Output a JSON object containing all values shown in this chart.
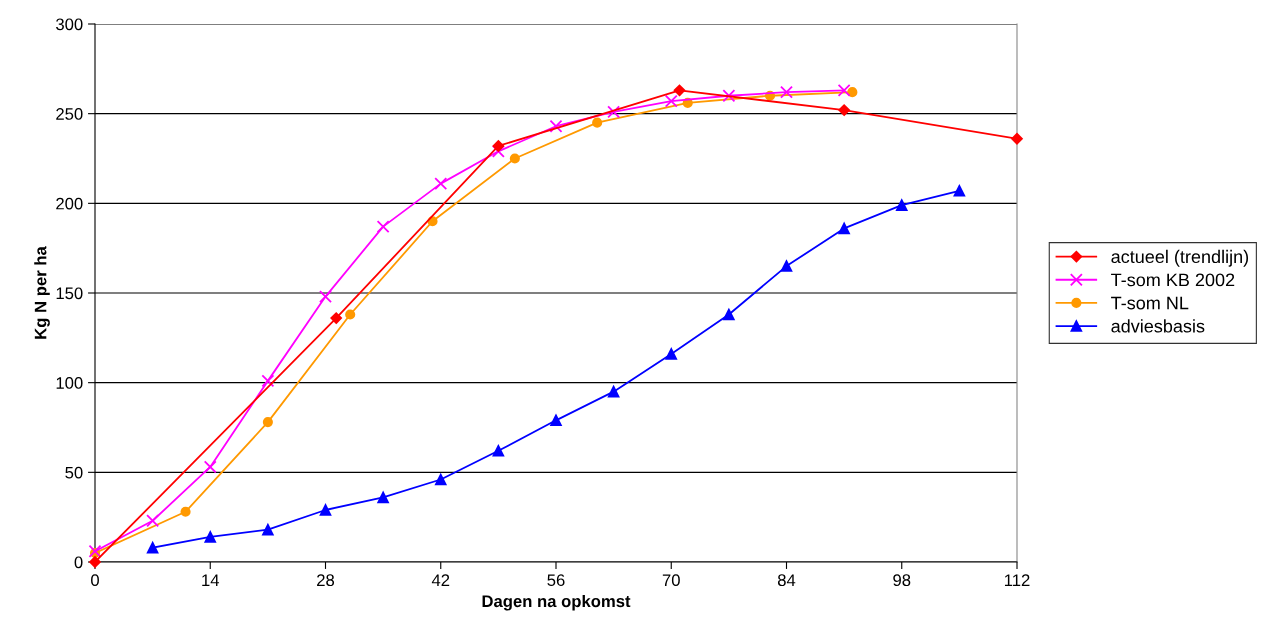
{
  "chart_data": {
    "type": "line",
    "xlabel": "Dagen na opkomst",
    "ylabel": "Kg N per ha",
    "xlim": [
      0,
      112
    ],
    "xticks": [
      0,
      14,
      28,
      42,
      56,
      70,
      84,
      98,
      112
    ],
    "ylim": [
      0,
      300
    ],
    "yticks": [
      0,
      50,
      100,
      150,
      200,
      250,
      300
    ],
    "grid": "y",
    "legend": "right",
    "series": [
      {
        "name": "actueel (trendlijn)",
        "color": "#ff0000",
        "marker": "diamond",
        "x": [
          0,
          29.3,
          49,
          71,
          91,
          112
        ],
        "values": [
          0,
          136,
          232,
          263,
          252,
          236
        ]
      },
      {
        "name": "T-som KB 2002",
        "color": "#ff00ff",
        "marker": "cross",
        "x": [
          0,
          7,
          14,
          21,
          28,
          35,
          42,
          49,
          56,
          63,
          70,
          77,
          84,
          91
        ],
        "values": [
          6,
          23,
          53,
          101,
          148,
          187,
          211,
          229,
          243,
          251,
          257,
          260,
          262,
          263
        ]
      },
      {
        "name": "T-som NL",
        "color": "#ff9900",
        "marker": "circle",
        "x": [
          0,
          11,
          21,
          31,
          41,
          51,
          61,
          72,
          82,
          92
        ],
        "values": [
          5,
          28,
          78,
          138,
          190,
          225,
          245,
          256,
          260,
          262
        ]
      },
      {
        "name": "adviesbasis",
        "color": "#0000ff",
        "marker": "triangle",
        "x": [
          7,
          14,
          21,
          28,
          35,
          42,
          49,
          56,
          63,
          70,
          77,
          84,
          91,
          98,
          105
        ],
        "values": [
          8,
          14,
          18,
          29,
          36,
          46,
          62,
          79,
          95,
          116,
          138,
          165,
          186,
          199,
          207
        ]
      }
    ]
  }
}
